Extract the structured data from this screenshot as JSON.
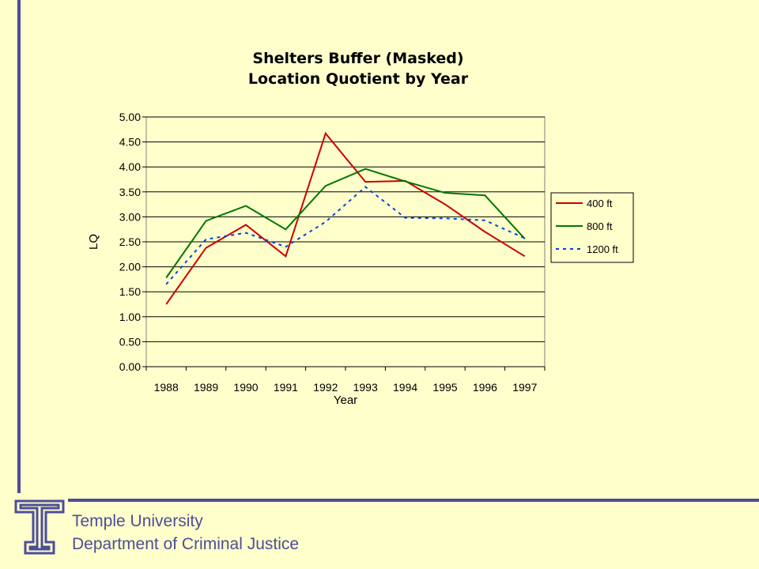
{
  "footer": {
    "institution": "Temple University",
    "department": "Department of Criminal Justice"
  },
  "colors": {
    "background": "#FFFFCC",
    "accent": "#4D4D99"
  },
  "chart_data": {
    "type": "line",
    "title": [
      "Shelters Buffer (Masked)",
      "Location Quotient by Year"
    ],
    "xlabel": "Year",
    "ylabel": "LQ",
    "categories": [
      "1988",
      "1989",
      "1990",
      "1991",
      "1992",
      "1993",
      "1994",
      "1995",
      "1996",
      "1997"
    ],
    "ylim": [
      0,
      5
    ],
    "yticks": [
      "0.00",
      "0.50",
      "1.00",
      "1.50",
      "2.00",
      "2.50",
      "3.00",
      "3.50",
      "4.00",
      "4.50",
      "5.00"
    ],
    "grid": "horizontal",
    "legend_position": "right",
    "series": [
      {
        "name": "400 ft",
        "color": "#CC0000",
        "dash": "solid",
        "values": [
          1.25,
          2.38,
          2.84,
          2.21,
          4.67,
          3.7,
          3.72,
          3.25,
          2.7,
          2.21
        ]
      },
      {
        "name": "800 ft",
        "color": "#007700",
        "dash": "solid",
        "values": [
          1.78,
          2.92,
          3.22,
          2.75,
          3.62,
          3.96,
          3.71,
          3.48,
          3.43,
          2.56
        ]
      },
      {
        "name": "1200 ft",
        "color": "#0044DD",
        "dash": "dotted",
        "values": [
          1.65,
          2.55,
          2.68,
          2.4,
          2.9,
          3.6,
          2.98,
          2.97,
          2.93,
          2.57
        ]
      }
    ]
  }
}
